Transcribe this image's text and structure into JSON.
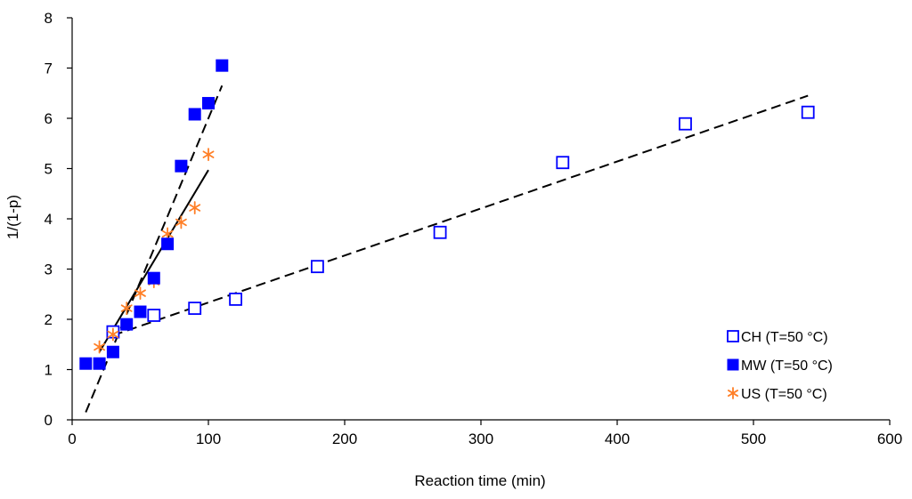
{
  "chart_data": {
    "type": "scatter",
    "title": "",
    "xlabel": "Reaction time (min)",
    "ylabel": "1/(1-p)",
    "xlim": [
      0,
      600
    ],
    "ylim": [
      0,
      8
    ],
    "x_ticks": [
      0,
      100,
      200,
      300,
      400,
      500,
      600
    ],
    "y_ticks": [
      0,
      1,
      2,
      3,
      4,
      5,
      6,
      7,
      8
    ],
    "grid": false,
    "legend_position": "bottom-right",
    "series": [
      {
        "name": "CH (T=50 °C)",
        "marker": "open-square",
        "color": "#0000ff",
        "x": [
          30,
          60,
          90,
          120,
          180,
          270,
          360,
          450,
          540
        ],
        "y": [
          1.75,
          2.08,
          2.22,
          2.4,
          3.05,
          3.73,
          5.12,
          5.89,
          6.12
        ],
        "fit": {
          "style": "dashed",
          "color": "#000000",
          "x": [
            30,
            540
          ],
          "y": [
            1.68,
            6.45
          ]
        }
      },
      {
        "name": "MW (T=50 °C)",
        "marker": "filled-square",
        "color": "#0000ff",
        "x": [
          10,
          20,
          30,
          40,
          50,
          60,
          70,
          80,
          90,
          100,
          110
        ],
        "y": [
          1.12,
          1.12,
          1.35,
          1.9,
          2.15,
          2.82,
          3.5,
          5.05,
          6.08,
          6.3,
          7.05
        ],
        "fit": {
          "style": "dashed",
          "color": "#000000",
          "x": [
            10,
            110
          ],
          "y": [
            0.15,
            6.65
          ]
        }
      },
      {
        "name": "US (T=50 °C)",
        "marker": "asterisk",
        "color": "#ff7f27",
        "x": [
          20,
          30,
          40,
          50,
          60,
          70,
          80,
          90,
          100
        ],
        "y": [
          1.45,
          1.7,
          2.22,
          2.52,
          2.75,
          3.7,
          3.93,
          4.22,
          5.28
        ],
        "fit": {
          "style": "solid",
          "color": "#000000",
          "x": [
            20,
            100
          ],
          "y": [
            1.35,
            4.97
          ]
        }
      }
    ]
  }
}
